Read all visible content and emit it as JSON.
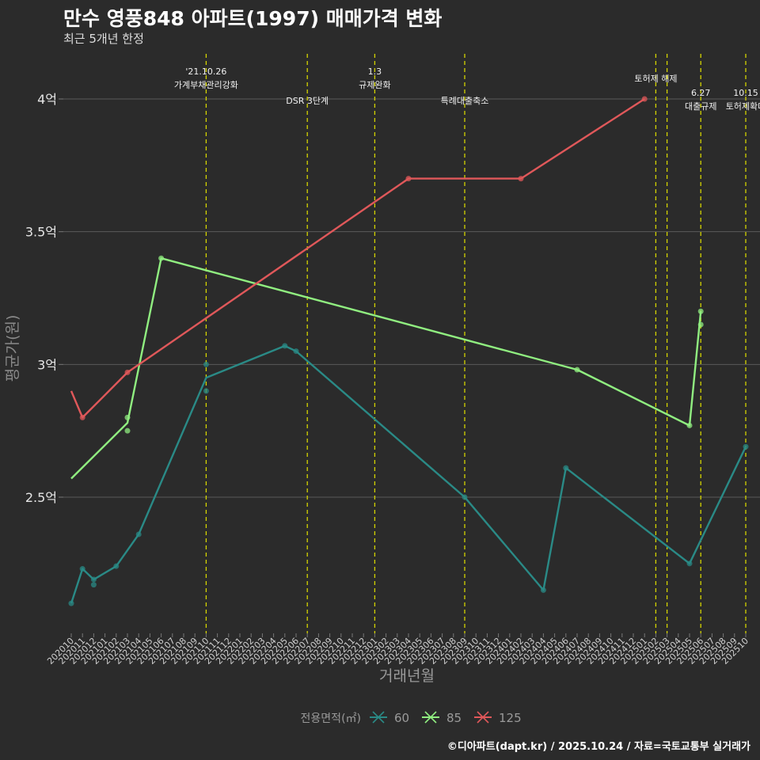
{
  "header": {
    "title": "만수 영풍848 아파트(1997) 매매가격 변화",
    "subtitle": "최근 5개년 한정"
  },
  "caption": "©디아파트(dapt.kr) / 2025.10.24 / 자료=국토교통부 실거래가",
  "colors": {
    "s60": "#2a8a86",
    "s85": "#90ee80",
    "s125": "#e0585a",
    "event": "#d4d400"
  },
  "chart_data": {
    "type": "line",
    "title": "만수 영풍848 아파트(1997) 매매가격 변화",
    "xlabel": "거래년월",
    "ylabel": "평균가(원)",
    "ylim": [
      2.05,
      4.2
    ],
    "yticks": [
      2.5,
      3,
      3.5,
      4
    ],
    "ytick_labels": [
      "2.5억",
      "3억",
      "3.5억",
      "4억"
    ],
    "categories": [
      "202010",
      "202011",
      "202012",
      "202101",
      "202102",
      "202103",
      "202104",
      "202105",
      "202106",
      "202107",
      "202108",
      "202109",
      "202110",
      "202111",
      "202112",
      "202201",
      "202202",
      "202203",
      "202204",
      "202205",
      "202206",
      "202207",
      "202208",
      "202209",
      "202210",
      "202211",
      "202212",
      "202301",
      "202302",
      "202303",
      "202304",
      "202305",
      "202306",
      "202307",
      "202308",
      "202309",
      "202310",
      "202311",
      "202312",
      "202401",
      "202402",
      "202403",
      "202404",
      "202405",
      "202406",
      "202407",
      "202408",
      "202409",
      "202410",
      "202411",
      "202412",
      "202501",
      "202502",
      "202503",
      "202504",
      "202505",
      "202506",
      "202507",
      "202508",
      "202509",
      "202510"
    ],
    "legend": {
      "title": "전용면적(㎡)",
      "position": "bottom"
    },
    "series": [
      {
        "name": "60",
        "color": "#2a8a86",
        "line": [
          [
            "202010",
            2.1
          ],
          [
            "202011",
            2.23
          ],
          [
            "202012",
            2.19
          ],
          [
            "202102",
            2.24
          ],
          [
            "202104",
            2.36
          ],
          [
            "202110",
            2.95
          ],
          [
            "202205",
            3.07
          ],
          [
            "202206",
            3.05
          ],
          [
            "202309",
            2.5
          ],
          [
            "202404",
            2.15
          ],
          [
            "202406",
            2.61
          ],
          [
            "202505",
            2.25
          ],
          [
            "202510",
            2.69
          ]
        ],
        "points": [
          [
            "202010",
            2.1
          ],
          [
            "202011",
            2.23
          ],
          [
            "202012",
            2.19
          ],
          [
            "202012",
            2.17
          ],
          [
            "202102",
            2.24
          ],
          [
            "202104",
            2.36
          ],
          [
            "202110",
            3.0
          ],
          [
            "202110",
            2.9
          ],
          [
            "202205",
            3.07
          ],
          [
            "202206",
            3.05
          ],
          [
            "202309",
            2.5
          ],
          [
            "202404",
            2.15
          ],
          [
            "202406",
            2.61
          ],
          [
            "202505",
            2.25
          ],
          [
            "202510",
            2.69
          ]
        ]
      },
      {
        "name": "85",
        "color": "#90ee80",
        "line": [
          [
            "202010",
            2.57
          ],
          [
            "202103",
            2.78
          ],
          [
            "202106",
            3.4
          ],
          [
            "202407",
            2.98
          ],
          [
            "202505",
            2.77
          ],
          [
            "202506",
            3.2
          ]
        ],
        "points": [
          [
            "202103",
            2.8
          ],
          [
            "202103",
            2.75
          ],
          [
            "202106",
            3.4
          ],
          [
            "202407",
            2.98
          ],
          [
            "202505",
            2.77
          ],
          [
            "202506",
            3.2
          ],
          [
            "202506",
            3.15
          ]
        ]
      },
      {
        "name": "125",
        "color": "#e0585a",
        "line": [
          [
            "202010",
            2.9
          ],
          [
            "202011",
            2.8
          ],
          [
            "202103",
            2.97
          ],
          [
            "202304",
            3.7
          ],
          [
            "202402",
            3.7
          ],
          [
            "202501",
            4.0
          ]
        ],
        "points": [
          [
            "202011",
            2.8
          ],
          [
            "202103",
            2.97
          ],
          [
            "202304",
            3.7
          ],
          [
            "202402",
            3.7
          ],
          [
            "202501",
            4.0
          ]
        ]
      }
    ],
    "events": [
      {
        "x": "202110",
        "lines": [
          "'21.10.26",
          "가계부채관리강화"
        ],
        "row": 1
      },
      {
        "x": "202207",
        "lines": [
          "DSR 3단계"
        ],
        "row": 2
      },
      {
        "x": "202301",
        "lines": [
          "1.3",
          "규제완화"
        ],
        "row": 1
      },
      {
        "x": "202309",
        "lines": [
          "특례대출축소"
        ],
        "row": 2
      },
      {
        "x": "202502",
        "lines": [
          "토허제 해제"
        ],
        "row": 1
      },
      {
        "x": "202503",
        "lines": [],
        "row": 1
      },
      {
        "x": "202506",
        "lines": [
          "6.27",
          "대출규제"
        ],
        "row": 2
      },
      {
        "x": "202510",
        "lines": [
          "10.15",
          "토허제확대"
        ],
        "row": 2
      }
    ]
  }
}
